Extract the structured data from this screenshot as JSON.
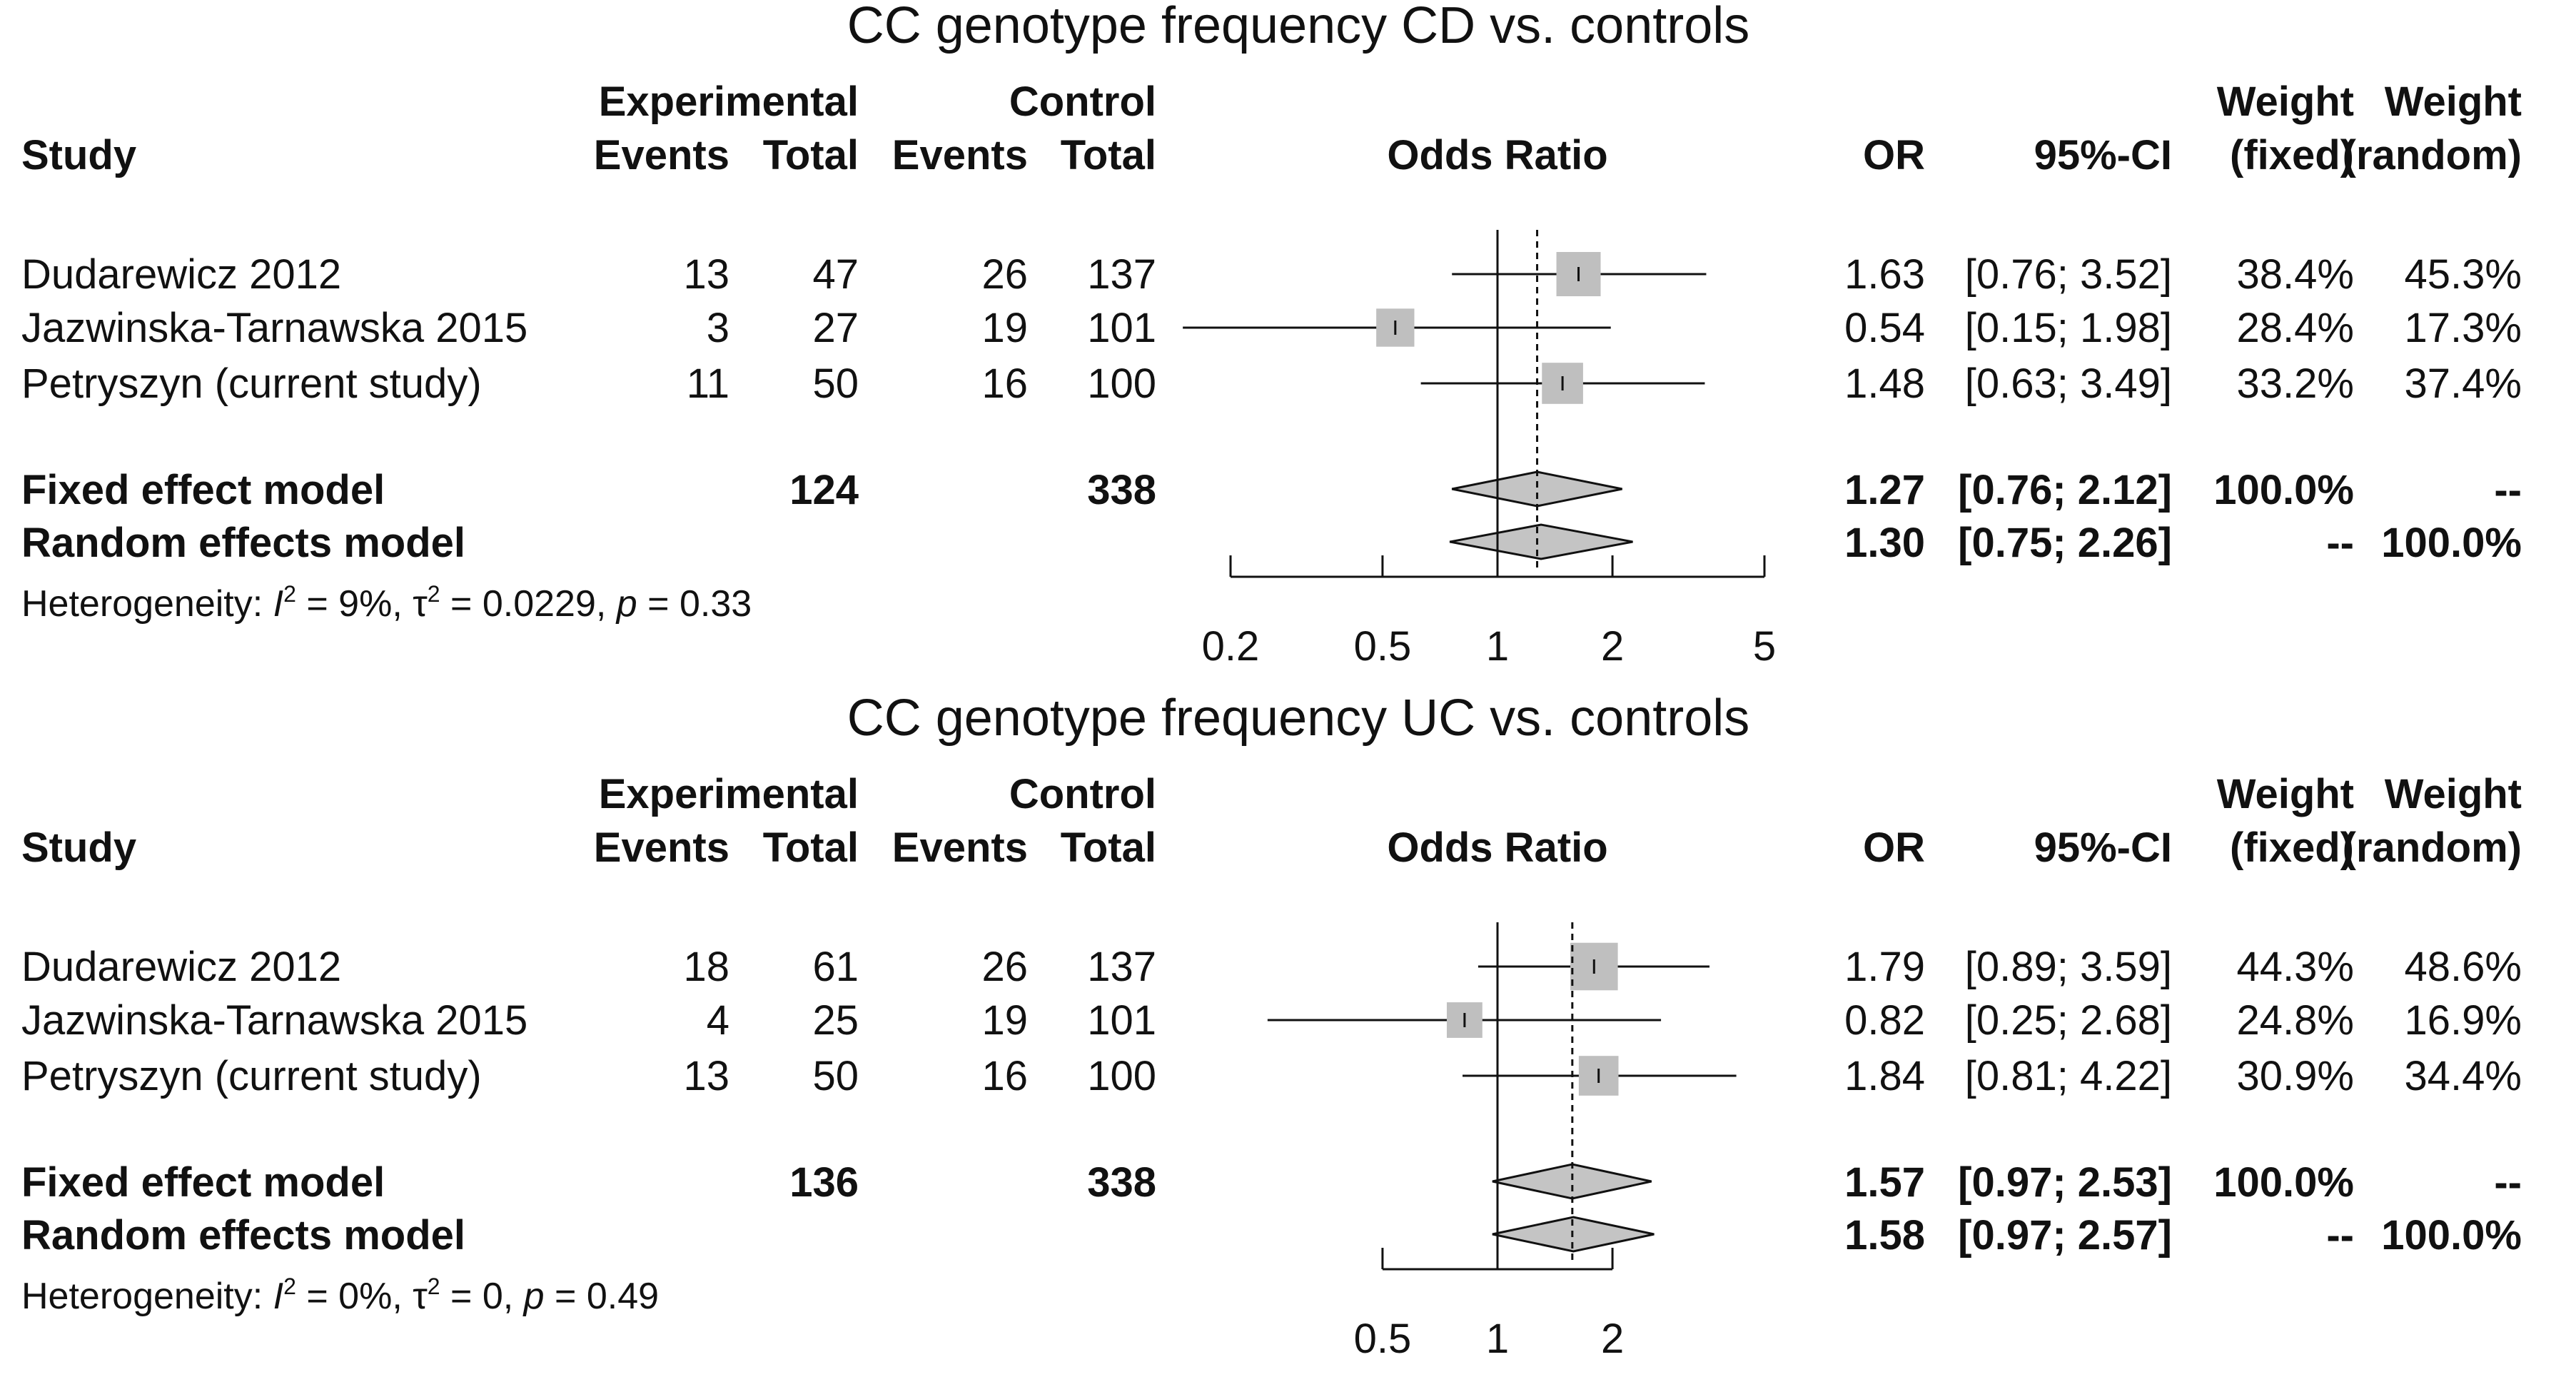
{
  "chart_data": [
    {
      "type": "forest",
      "title": "CC genotype frequency CD vs. controls",
      "headers": {
        "study": "Study",
        "experimental": "Experimental",
        "control": "Control",
        "events": "Events",
        "total": "Total",
        "odds_ratio": "Odds Ratio",
        "or": "OR",
        "ci": "95%-CI",
        "weight": "Weight",
        "fixed": "(fixed)",
        "random": "(random)"
      },
      "studies": [
        {
          "name": "Dudarewicz 2012",
          "exp_events": "13",
          "exp_total": "47",
          "ctrl_events": "26",
          "ctrl_total": "137",
          "or_text": "1.63",
          "ci_text": "[0.76; 3.52]",
          "w_fixed": "38.4%",
          "w_random": "45.3%",
          "or": 1.63,
          "lo": 0.76,
          "hi": 3.52,
          "weight": 38.4
        },
        {
          "name": "Jazwinska-Tarnawska 2015",
          "exp_events": "3",
          "exp_total": "27",
          "ctrl_events": "19",
          "ctrl_total": "101",
          "or_text": "0.54",
          "ci_text": "[0.15; 1.98]",
          "w_fixed": "28.4%",
          "w_random": "17.3%",
          "or": 0.54,
          "lo": 0.15,
          "hi": 1.98,
          "weight": 28.4
        },
        {
          "name": "Petryszyn (current study)",
          "exp_events": "11",
          "exp_total": "50",
          "ctrl_events": "16",
          "ctrl_total": "100",
          "or_text": "1.48",
          "ci_text": "[0.63; 3.49]",
          "w_fixed": "33.2%",
          "w_random": "37.4%",
          "or": 1.48,
          "lo": 0.63,
          "hi": 3.49,
          "weight": 33.2
        }
      ],
      "fixed": {
        "label": "Fixed effect model",
        "exp_total": "124",
        "ctrl_total": "338",
        "or_text": "1.27",
        "ci_text": "[0.76; 2.12]",
        "w_fixed": "100.0%",
        "w_random": "--",
        "or": 1.27,
        "lo": 0.76,
        "hi": 2.12
      },
      "random": {
        "label": "Random effects model",
        "or_text": "1.30",
        "ci_text": "[0.75; 2.26]",
        "w_fixed": "--",
        "w_random": "100.0%",
        "or": 1.3,
        "lo": 0.75,
        "hi": 2.26
      },
      "heterogeneity": {
        "prefix": "Heterogeneity: ",
        "i2_label": "I",
        "i2_value": " = 9%, ",
        "tau_label": "τ",
        "tau_value": " = 0.0229, ",
        "p_label": "p",
        "p_value": " = 0.33"
      },
      "x_axis": {
        "scale": "log",
        "range": [
          0.2,
          5
        ],
        "ticks": [
          0.2,
          0.5,
          1,
          2,
          5
        ],
        "tick_labels": [
          "0.2",
          "0.5",
          "1",
          "2",
          "5"
        ],
        "reference": 1
      }
    },
    {
      "type": "forest",
      "title": "CC genotype frequency UC vs. controls",
      "headers": {
        "study": "Study",
        "experimental": "Experimental",
        "control": "Control",
        "events": "Events",
        "total": "Total",
        "odds_ratio": "Odds Ratio",
        "or": "OR",
        "ci": "95%-CI",
        "weight": "Weight",
        "fixed": "(fixed)",
        "random": "(random)"
      },
      "studies": [
        {
          "name": "Dudarewicz 2012",
          "exp_events": "18",
          "exp_total": "61",
          "ctrl_events": "26",
          "ctrl_total": "137",
          "or_text": "1.79",
          "ci_text": "[0.89; 3.59]",
          "w_fixed": "44.3%",
          "w_random": "48.6%",
          "or": 1.79,
          "lo": 0.89,
          "hi": 3.59,
          "weight": 44.3
        },
        {
          "name": "Jazwinska-Tarnawska 2015",
          "exp_events": "4",
          "exp_total": "25",
          "ctrl_events": "19",
          "ctrl_total": "101",
          "or_text": "0.82",
          "ci_text": "[0.25; 2.68]",
          "w_fixed": "24.8%",
          "w_random": "16.9%",
          "or": 0.82,
          "lo": 0.25,
          "hi": 2.68,
          "weight": 24.8
        },
        {
          "name": "Petryszyn (current study)",
          "exp_events": "13",
          "exp_total": "50",
          "ctrl_events": "16",
          "ctrl_total": "100",
          "or_text": "1.84",
          "ci_text": "[0.81; 4.22]",
          "w_fixed": "30.9%",
          "w_random": "34.4%",
          "or": 1.84,
          "lo": 0.81,
          "hi": 4.22,
          "weight": 30.9
        }
      ],
      "fixed": {
        "label": "Fixed effect model",
        "exp_total": "136",
        "ctrl_total": "338",
        "or_text": "1.57",
        "ci_text": "[0.97; 2.53]",
        "w_fixed": "100.0%",
        "w_random": "--",
        "or": 1.57,
        "lo": 0.97,
        "hi": 2.53
      },
      "random": {
        "label": "Random effects model",
        "or_text": "1.58",
        "ci_text": "[0.97; 2.57]",
        "w_fixed": "--",
        "w_random": "100.0%",
        "or": 1.58,
        "lo": 0.97,
        "hi": 2.57
      },
      "heterogeneity": {
        "prefix": "Heterogeneity: ",
        "i2_label": "I",
        "i2_value": " = 0%, ",
        "tau_label": "τ",
        "tau_value": " = 0, ",
        "p_label": "p",
        "p_value": " = 0.49"
      },
      "x_axis": {
        "scale": "log",
        "range": [
          0.5,
          2
        ],
        "ticks": [
          0.5,
          1,
          2
        ],
        "tick_labels": [
          "0.5",
          "1",
          "2"
        ],
        "reference": 1
      }
    }
  ]
}
